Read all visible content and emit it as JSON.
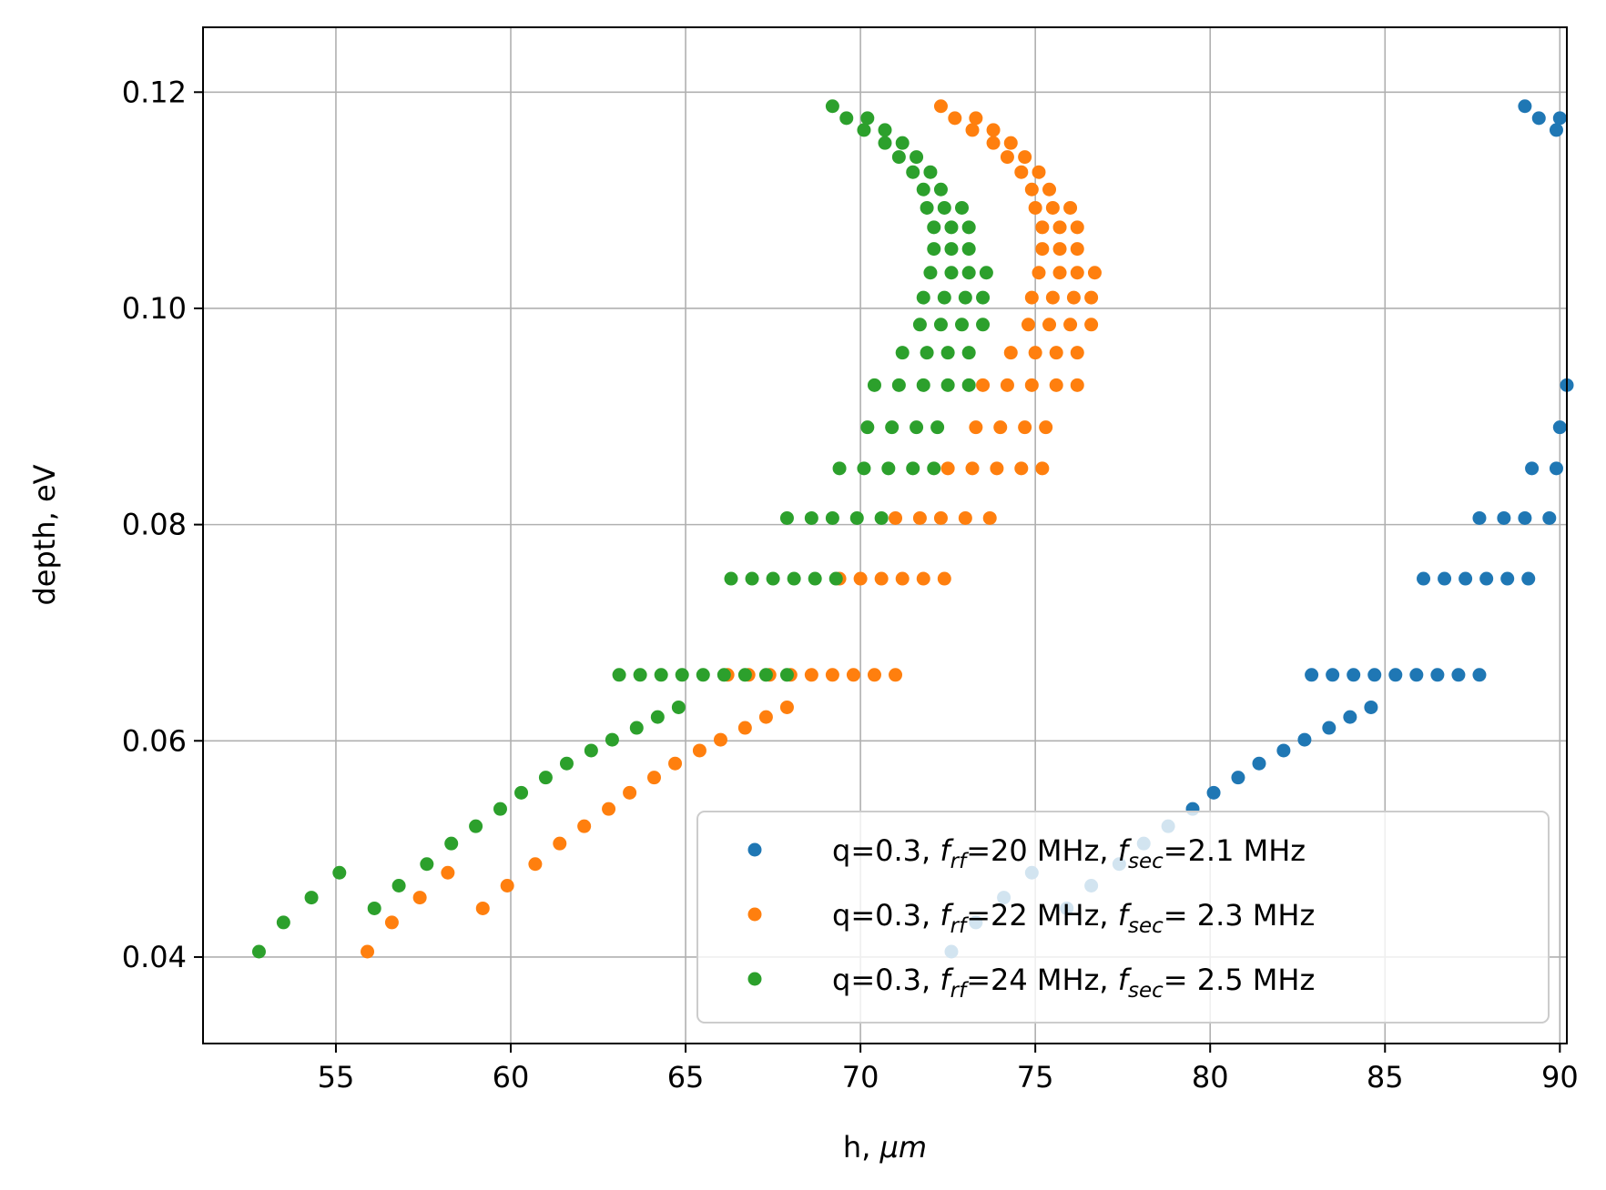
{
  "chart_data": {
    "type": "scatter",
    "title": "",
    "xlabel_main": "h, ",
    "xlabel_unit": "μm",
    "ylabel": "depth, eV",
    "xlim": [
      51.2,
      90.2
    ],
    "ylim": [
      0.032,
      0.126
    ],
    "xticks": [
      55,
      60,
      65,
      70,
      75,
      80,
      85,
      90
    ],
    "xtick_labels": [
      "55",
      "60",
      "65",
      "70",
      "75",
      "80",
      "85",
      "90"
    ],
    "yticks": [
      0.04,
      0.06,
      0.08,
      0.1,
      0.12
    ],
    "ytick_labels": [
      "0.04",
      "0.06",
      "0.08",
      "0.10",
      "0.12"
    ],
    "grid": true,
    "legend_position": "lower-right",
    "series": [
      {
        "name": "q=0.3, f_rf=20 MHz, f_sec=2.1 MHz",
        "legend": {
          "a": "q=0.3, ",
          "s1": "rf",
          "b": "=20 MHz, ",
          "s2": "sec",
          "c": "=2.1 MHz"
        },
        "color": "#1f77b4",
        "shift": 19.8
      },
      {
        "name": "q=0.3, f_rf=22 MHz, f_sec= 2.3 MHz",
        "legend": {
          "a": "q=0.3, ",
          "s1": "rf",
          "b": "=22 MHz, ",
          "s2": "sec",
          "c": "= 2.3 MHz"
        },
        "color": "#ff7f0e",
        "shift": 3.1
      },
      {
        "name": "q=0.3, f_rf=24 MHz, f_sec= 2.5 MHz",
        "legend": {
          "a": "q=0.3, ",
          "s1": "rf",
          "b": "=24 MHz, ",
          "s2": "sec",
          "c": "= 2.5 MHz"
        },
        "color": "#2ca02c",
        "shift": 0
      }
    ],
    "base_rows": [
      {
        "depth": 0.0405,
        "h": [
          52.8
        ]
      },
      {
        "depth": 0.0432,
        "h": [
          53.5
        ]
      },
      {
        "depth": 0.0455,
        "h": [
          54.3
        ]
      },
      {
        "depth": 0.0478,
        "h": [
          55.1
        ]
      },
      {
        "depth": 0.0445,
        "h": [
          56.1
        ]
      },
      {
        "depth": 0.0466,
        "h": [
          56.8
        ]
      },
      {
        "depth": 0.0486,
        "h": [
          57.6
        ]
      },
      {
        "depth": 0.0505,
        "h": [
          58.3
        ]
      },
      {
        "depth": 0.0521,
        "h": [
          59.0
        ]
      },
      {
        "depth": 0.0537,
        "h": [
          59.7
        ]
      },
      {
        "depth": 0.0552,
        "h": [
          60.3
        ]
      },
      {
        "depth": 0.0566,
        "h": [
          61.0
        ]
      },
      {
        "depth": 0.0579,
        "h": [
          61.6
        ]
      },
      {
        "depth": 0.0591,
        "h": [
          62.3
        ]
      },
      {
        "depth": 0.0601,
        "h": [
          62.9
        ]
      },
      {
        "depth": 0.0612,
        "h": [
          63.6
        ]
      },
      {
        "depth": 0.0622,
        "h": [
          64.2
        ]
      },
      {
        "depth": 0.0631,
        "h": [
          64.8
        ]
      },
      {
        "depth": 0.0661,
        "h": [
          63.1,
          63.7,
          64.3,
          64.9,
          65.5,
          66.1,
          66.7,
          67.3,
          67.9
        ]
      },
      {
        "depth": 0.075,
        "h": [
          66.3,
          66.9,
          67.5,
          68.1,
          68.7,
          69.3
        ]
      },
      {
        "depth": 0.0806,
        "h": [
          67.9,
          68.6,
          69.2,
          69.9,
          70.6
        ]
      },
      {
        "depth": 0.0852,
        "h": [
          69.4,
          70.1,
          70.8,
          71.5,
          72.1
        ]
      },
      {
        "depth": 0.089,
        "h": [
          70.2,
          70.9,
          71.6,
          72.2
        ]
      },
      {
        "depth": 0.0929,
        "h": [
          70.4,
          71.1,
          71.8,
          72.5,
          73.1
        ]
      },
      {
        "depth": 0.0959,
        "h": [
          71.2,
          71.9,
          72.5,
          73.1
        ]
      },
      {
        "depth": 0.0985,
        "h": [
          71.7,
          72.3,
          72.9,
          73.5
        ]
      },
      {
        "depth": 0.101,
        "h": [
          71.8,
          72.4,
          73.0,
          73.5
        ]
      },
      {
        "depth": 0.1033,
        "h": [
          72.0,
          72.6,
          73.1,
          73.6
        ]
      },
      {
        "depth": 0.1055,
        "h": [
          72.1,
          72.6,
          73.1
        ]
      },
      {
        "depth": 0.1075,
        "h": [
          72.1,
          72.6,
          73.1
        ]
      },
      {
        "depth": 0.1093,
        "h": [
          71.9,
          72.4,
          72.9
        ]
      },
      {
        "depth": 0.111,
        "h": [
          71.8,
          72.3
        ]
      },
      {
        "depth": 0.1126,
        "h": [
          71.5,
          72.0
        ]
      },
      {
        "depth": 0.114,
        "h": [
          71.1,
          71.6
        ]
      },
      {
        "depth": 0.1153,
        "h": [
          70.7,
          71.2
        ]
      },
      {
        "depth": 0.1165,
        "h": [
          70.1,
          70.7
        ]
      },
      {
        "depth": 0.1176,
        "h": [
          69.6,
          70.2
        ]
      },
      {
        "depth": 0.1187,
        "h": [
          69.2
        ]
      }
    ]
  }
}
